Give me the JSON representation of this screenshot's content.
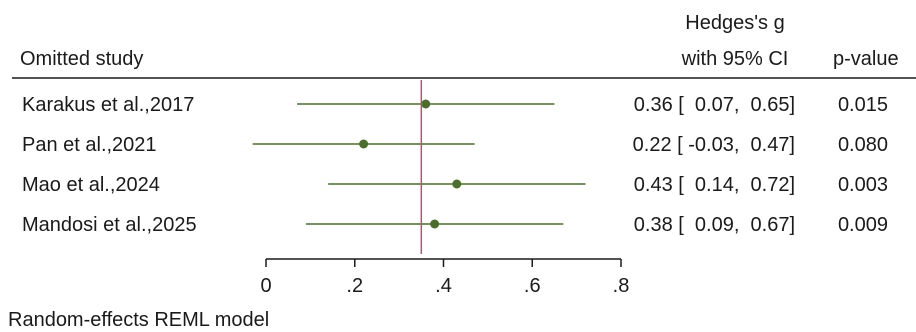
{
  "chart_data": {
    "type": "forest",
    "title": "",
    "header": {
      "study_col": "Omitted study",
      "effect_col_line1": "Hedges's g",
      "effect_col_line2": "with 95% CI",
      "p_col": "p-value"
    },
    "studies": [
      {
        "label": "Karakus et al.,2017",
        "estimate": 0.36,
        "ci_low": 0.07,
        "ci_high": 0.65,
        "ci_text": "0.36 [  0.07,  0.65]",
        "p": "0.015"
      },
      {
        "label": "Pan et al.,2021",
        "estimate": 0.22,
        "ci_low": -0.03,
        "ci_high": 0.47,
        "ci_text": "0.22 [ -0.03,  0.47]",
        "p": "0.080"
      },
      {
        "label": "Mao et al.,2024",
        "estimate": 0.43,
        "ci_low": 0.14,
        "ci_high": 0.72,
        "ci_text": "0.43 [  0.14,  0.72]",
        "p": "0.003"
      },
      {
        "label": "Mandosi et al.,2025",
        "estimate": 0.38,
        "ci_low": 0.09,
        "ci_high": 0.67,
        "ci_text": "0.38 [  0.09,  0.67]",
        "p": "0.009"
      }
    ],
    "reference_line": 0.35,
    "xlim": [
      0,
      0.8
    ],
    "xticks": [
      0,
      0.2,
      0.4,
      0.6,
      0.8
    ],
    "xtick_labels": [
      "0",
      ".2",
      ".4",
      ".6",
      ".8"
    ],
    "footnote": "Random-effects REML model",
    "colors": {
      "ci": "#4a6e2c",
      "point": "#4a6e2c",
      "reference": "#c0506e",
      "axis": "#1a1a1a"
    }
  }
}
